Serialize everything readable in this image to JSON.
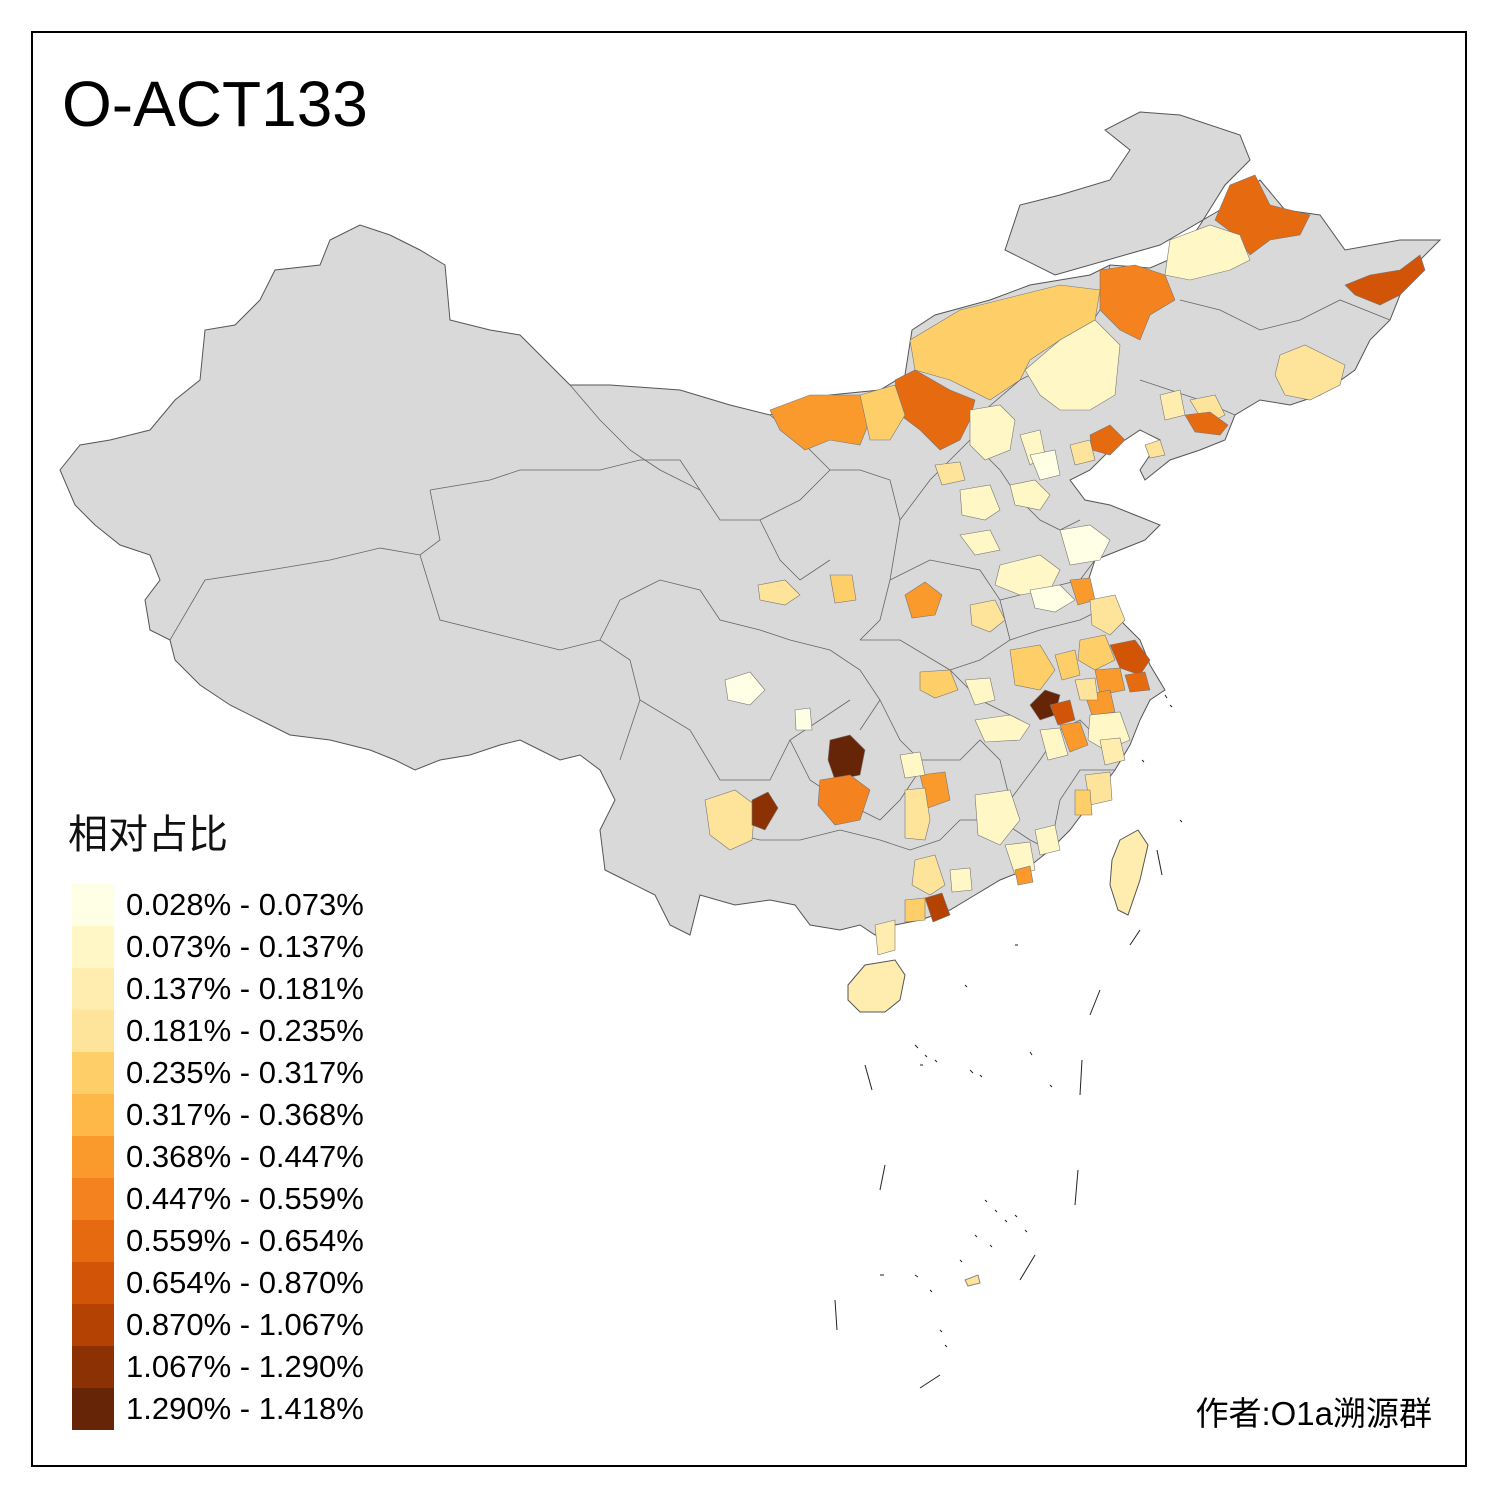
{
  "title": "O-ACT133",
  "legend": {
    "title": "相对占比",
    "items": [
      {
        "label": "0.028% - 0.073%",
        "color": "#ffffe5"
      },
      {
        "label": "0.073% - 0.137%",
        "color": "#fff7c6"
      },
      {
        "label": "0.137% - 0.181%",
        "color": "#ffedb0"
      },
      {
        "label": "0.181% - 0.235%",
        "color": "#fee39a"
      },
      {
        "label": "0.235% - 0.317%",
        "color": "#fecf68"
      },
      {
        "label": "0.317% - 0.368%",
        "color": "#feb848"
      },
      {
        "label": "0.368% - 0.447%",
        "color": "#fb9a2c"
      },
      {
        "label": "0.447% - 0.559%",
        "color": "#f4821f"
      },
      {
        "label": "0.559% - 0.654%",
        "color": "#e66a10"
      },
      {
        "label": "0.654% - 0.870%",
        "color": "#d25406"
      },
      {
        "label": "0.870% - 1.067%",
        "color": "#b34203"
      },
      {
        "label": "1.067% - 1.290%",
        "color": "#8c3104"
      },
      {
        "label": "1.290% - 1.418%",
        "color": "#662506"
      }
    ]
  },
  "author": "作者:O1a溯源群",
  "colors": {
    "no_data": "#d9d9d9",
    "border": "#555555",
    "frame": "#000000"
  }
}
